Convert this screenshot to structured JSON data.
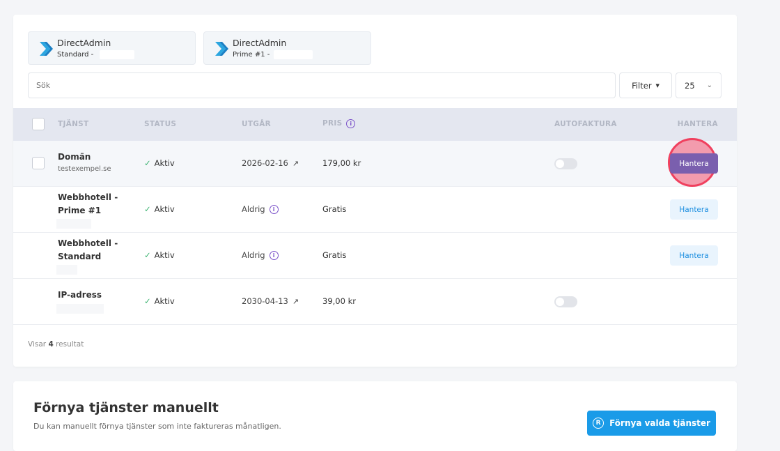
{
  "tabs": [
    {
      "title": "DirectAdmin",
      "subtitle": "Standard -"
    },
    {
      "title": "DirectAdmin",
      "subtitle": "Prime #1 -"
    }
  ],
  "search": {
    "placeholder": "Sök"
  },
  "filter_label": "Filter",
  "per_page": "25",
  "table": {
    "headers": {
      "service": "TJÄNST",
      "status": "STATUS",
      "expires": "UTGÅR",
      "price": "PRIS",
      "autoinvoice": "AUTOFAKTURA",
      "manage": "HANTERA"
    },
    "rows": [
      {
        "name": "Domän",
        "sub": "testexempel.se",
        "status": "Aktiv",
        "expires": "2026-02-16",
        "price": "179,00 kr",
        "manage": "Hantera"
      },
      {
        "name": "Webbhotell -",
        "name2": "Prime #1",
        "status": "Aktiv",
        "expires": "Aldrig",
        "price": "Gratis",
        "manage": "Hantera"
      },
      {
        "name": "Webbhotell -",
        "name2": "Standard",
        "status": "Aktiv",
        "expires": "Aldrig",
        "price": "Gratis",
        "manage": "Hantera"
      },
      {
        "name": "IP-adress",
        "status": "Aktiv",
        "expires": "2030-04-13",
        "price": "39,00 kr"
      }
    ]
  },
  "footer": {
    "prefix": "Visar",
    "count": "4",
    "suffix": "resultat"
  },
  "renew": {
    "title": "Förnya tjänster manuellt",
    "desc": "Du kan manuellt förnya tjänster som inte faktureras månatligen.",
    "button": "Förnya valda tjänster"
  },
  "colors": {
    "accent": "#1a9be8",
    "highlight_row": "#f5f7fa",
    "header_bg": "#e4e7f0"
  }
}
